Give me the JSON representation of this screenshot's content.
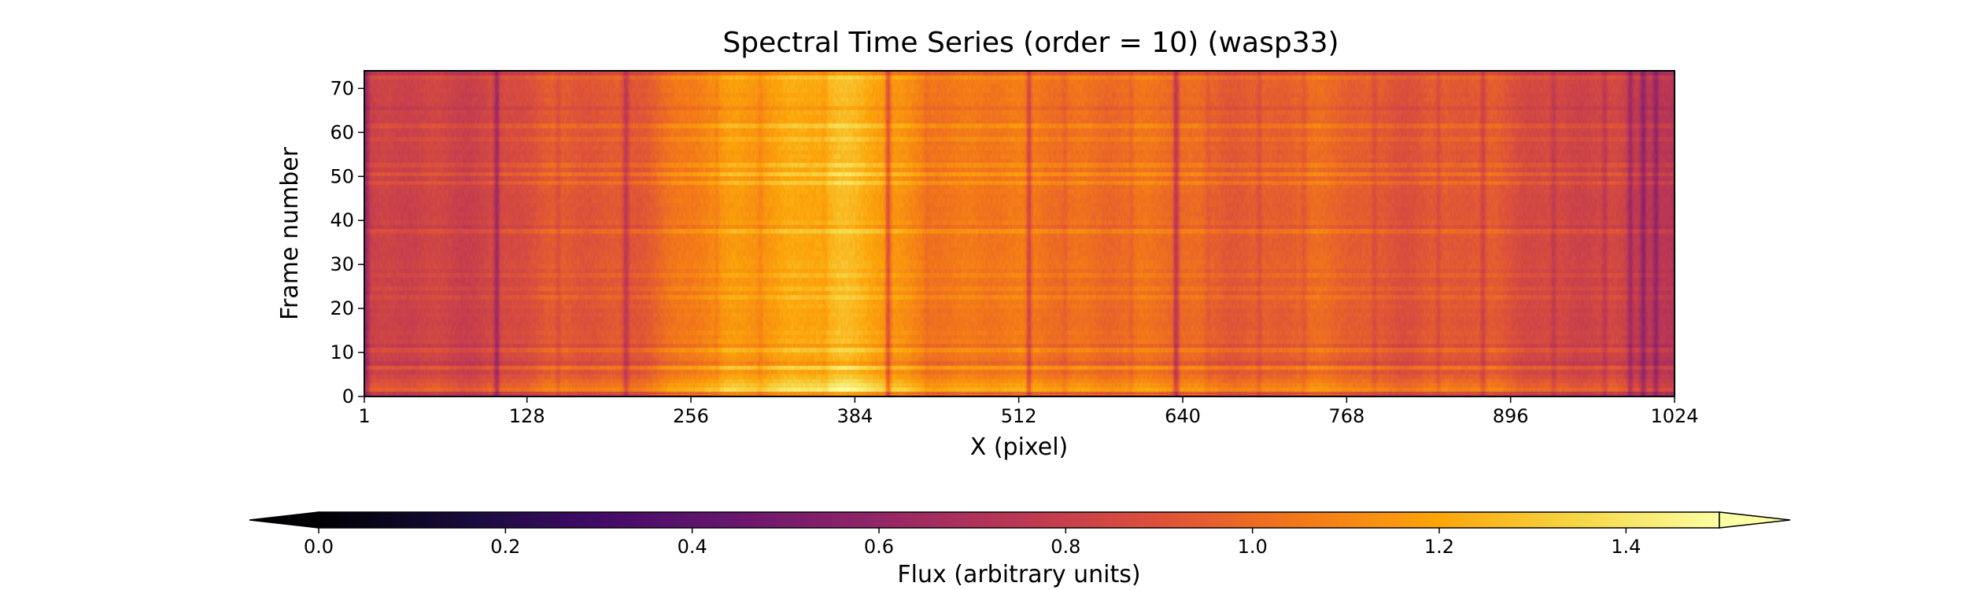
{
  "chart_data": {
    "type": "heatmap",
    "title": "Spectral Time Series (order = 10) (wasp33)",
    "xlabel": "X (pixel)",
    "ylabel": "Frame number",
    "colorbar_label": "Flux (arbitrary units)",
    "colormap": "inferno",
    "xlim": [
      1,
      1024
    ],
    "ylim": [
      0,
      74
    ],
    "clim": [
      0.0,
      1.5
    ],
    "colorbar_extend": "both",
    "xticks": [
      1,
      128,
      256,
      384,
      512,
      640,
      768,
      896,
      1024
    ],
    "xtick_labels": [
      "1",
      "128",
      "256",
      "384",
      "512",
      "640",
      "768",
      "896",
      "1024"
    ],
    "yticks": [
      0,
      10,
      20,
      30,
      40,
      50,
      60,
      70
    ],
    "ytick_labels": [
      "0",
      "10",
      "20",
      "30",
      "40",
      "50",
      "60",
      "70"
    ],
    "colorbar_ticks": [
      0.0,
      0.2,
      0.4,
      0.6,
      0.8,
      1.0,
      1.2,
      1.4
    ],
    "colorbar_tick_labels": [
      "0.0",
      "0.2",
      "0.4",
      "0.6",
      "0.8",
      "1.0",
      "1.2",
      "1.4"
    ],
    "n_frames": 74,
    "n_pixels": 1024,
    "continuum_profile": {
      "x": [
        1,
        40,
        80,
        128,
        180,
        220,
        256,
        290,
        330,
        370,
        400,
        430,
        470,
        512,
        560,
        600,
        640,
        700,
        768,
        830,
        896,
        940,
        980,
        1010,
        1024
      ],
      "flux": [
        0.78,
        0.8,
        0.84,
        0.88,
        0.92,
        0.97,
        1.04,
        1.14,
        1.22,
        1.24,
        1.18,
        1.1,
        1.05,
        1.02,
        1.04,
        1.01,
        0.98,
        0.96,
        0.96,
        0.92,
        0.9,
        0.86,
        0.8,
        0.74,
        0.72
      ]
    },
    "absorption_lines": [
      {
        "x": 2,
        "depth": 0.18
      },
      {
        "x": 104,
        "depth": 0.22
      },
      {
        "x": 152,
        "depth": 0.07
      },
      {
        "x": 205,
        "depth": 0.18
      },
      {
        "x": 276,
        "depth": 0.05
      },
      {
        "x": 310,
        "depth": 0.05
      },
      {
        "x": 360,
        "depth": 0.04
      },
      {
        "x": 410,
        "depth": 0.26
      },
      {
        "x": 440,
        "depth": 0.04
      },
      {
        "x": 520,
        "depth": 0.22
      },
      {
        "x": 548,
        "depth": 0.05
      },
      {
        "x": 600,
        "depth": 0.05
      },
      {
        "x": 635,
        "depth": 0.26
      },
      {
        "x": 660,
        "depth": 0.05
      },
      {
        "x": 700,
        "depth": 0.07
      },
      {
        "x": 735,
        "depth": 0.06
      },
      {
        "x": 790,
        "depth": 0.07
      },
      {
        "x": 840,
        "depth": 0.08
      },
      {
        "x": 875,
        "depth": 0.12
      },
      {
        "x": 930,
        "depth": 0.09
      },
      {
        "x": 970,
        "depth": 0.1
      },
      {
        "x": 990,
        "depth": 0.16
      },
      {
        "x": 1000,
        "depth": 0.18
      },
      {
        "x": 1010,
        "depth": 0.16
      }
    ],
    "frame_modulation": {
      "frames": [
        0,
        1,
        2,
        3,
        4,
        6,
        7,
        10,
        11,
        22,
        24,
        27,
        37,
        38,
        48,
        50,
        52,
        58,
        61,
        65,
        72,
        73
      ],
      "factor": [
        0.93,
        1.16,
        1.1,
        1.06,
        1.04,
        1.12,
        0.95,
        1.06,
        0.95,
        1.05,
        1.04,
        1.03,
        1.07,
        0.96,
        1.08,
        1.1,
        1.06,
        1.04,
        1.07,
        0.96,
        1.05,
        0.92
      ]
    }
  }
}
